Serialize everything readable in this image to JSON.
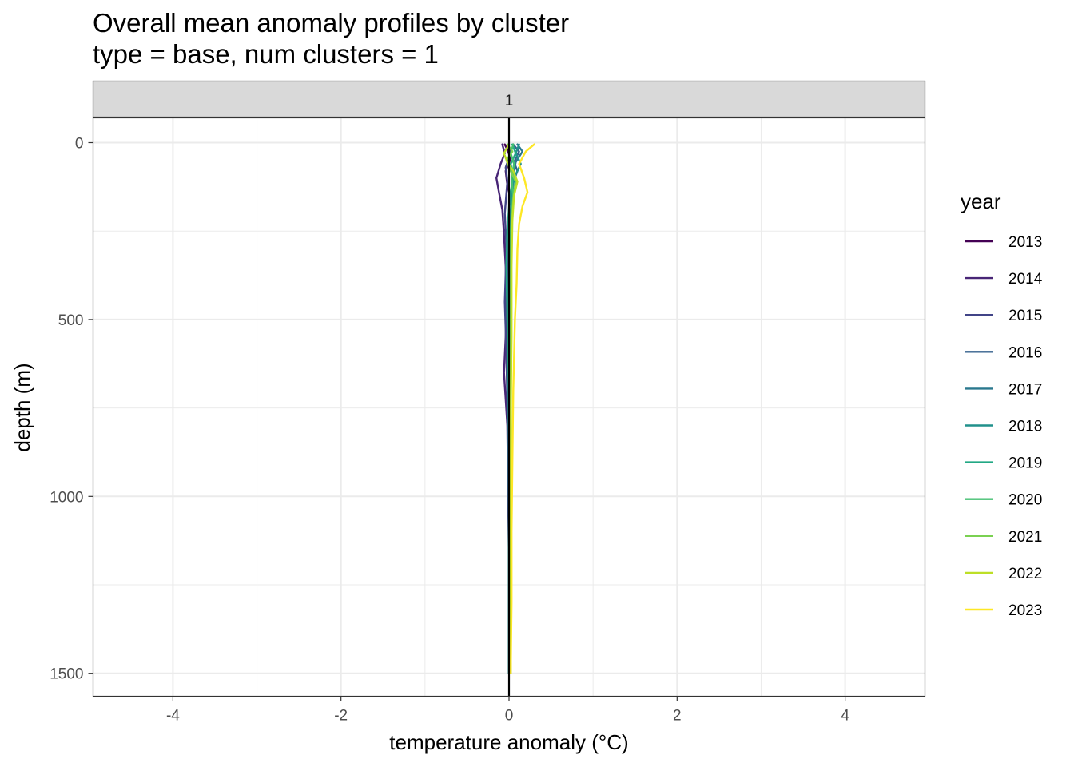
{
  "chart_data": {
    "type": "line",
    "title": "Overall mean anomaly profiles by cluster",
    "subtitle": "type = base, num clusters = 1",
    "xlabel": "temperature anomaly (°C)",
    "ylabel": "depth (m)",
    "xlim": [
      -4.95,
      4.95
    ],
    "ylim": [
      -70,
      1565
    ],
    "y_reversed": true,
    "x_ticks": [
      -4,
      -2,
      0,
      2,
      4
    ],
    "x_tick_labels": [
      "-4",
      "-2",
      "0",
      "2",
      "4"
    ],
    "y_ticks": [
      0,
      500,
      1000,
      1500
    ],
    "y_tick_labels": [
      "0",
      "500",
      "1000",
      "1500"
    ],
    "grid": true,
    "facet_label": "1",
    "reference_line_x": 0,
    "legend": {
      "title": "year",
      "placement": "right"
    },
    "series": [
      {
        "name": "2013",
        "color": "#440154",
        "points": [
          [
            -0.05,
            5
          ],
          [
            -0.02,
            20
          ],
          [
            0.02,
            45
          ],
          [
            -0.04,
            80
          ],
          [
            -0.02,
            120
          ],
          [
            0.03,
            170
          ],
          [
            0.0,
            250
          ],
          [
            0.01,
            400
          ],
          [
            0.0,
            600
          ],
          [
            0.0,
            900
          ],
          [
            0.0,
            1200
          ],
          [
            0.0,
            1500
          ]
        ]
      },
      {
        "name": "2014",
        "color": "#482576",
        "points": [
          [
            -0.08,
            5
          ],
          [
            -0.05,
            30
          ],
          [
            -0.1,
            60
          ],
          [
            -0.15,
            100
          ],
          [
            -0.12,
            140
          ],
          [
            -0.08,
            190
          ],
          [
            -0.06,
            260
          ],
          [
            -0.04,
            350
          ],
          [
            -0.03,
            450
          ],
          [
            -0.04,
            550
          ],
          [
            -0.06,
            650
          ],
          [
            -0.02,
            800
          ],
          [
            -0.01,
            1000
          ],
          [
            0.0,
            1200
          ],
          [
            0.0,
            1500
          ]
        ]
      },
      {
        "name": "2015",
        "color": "#414487",
        "points": [
          [
            -0.02,
            5
          ],
          [
            0.02,
            30
          ],
          [
            -0.04,
            70
          ],
          [
            -0.02,
            110
          ],
          [
            -0.05,
            200
          ],
          [
            -0.03,
            300
          ],
          [
            -0.05,
            450
          ],
          [
            -0.03,
            600
          ],
          [
            -0.02,
            750
          ],
          [
            -0.01,
            900
          ],
          [
            0.0,
            1100
          ],
          [
            0.0,
            1300
          ],
          [
            0.0,
            1500
          ]
        ]
      },
      {
        "name": "2016",
        "color": "#35608d",
        "points": [
          [
            0.05,
            5
          ],
          [
            0.12,
            25
          ],
          [
            0.06,
            55
          ],
          [
            0.1,
            80
          ],
          [
            0.04,
            120
          ],
          [
            0.02,
            200
          ],
          [
            -0.01,
            300
          ],
          [
            -0.02,
            450
          ],
          [
            -0.01,
            650
          ],
          [
            0.0,
            900
          ],
          [
            0.0,
            1200
          ],
          [
            0.0,
            1500
          ]
        ]
      },
      {
        "name": "2017",
        "color": "#2a788e",
        "points": [
          [
            0.1,
            5
          ],
          [
            0.16,
            25
          ],
          [
            0.08,
            55
          ],
          [
            0.05,
            90
          ],
          [
            0.03,
            150
          ],
          [
            0.01,
            250
          ],
          [
            0.0,
            400
          ],
          [
            -0.01,
            600
          ],
          [
            0.0,
            900
          ],
          [
            0.0,
            1200
          ],
          [
            0.0,
            1500
          ]
        ]
      },
      {
        "name": "2018",
        "color": "#21918c",
        "points": [
          [
            0.12,
            5
          ],
          [
            0.08,
            30
          ],
          [
            0.14,
            60
          ],
          [
            0.06,
            100
          ],
          [
            0.03,
            160
          ],
          [
            0.01,
            250
          ],
          [
            0.0,
            400
          ],
          [
            0.0,
            600
          ],
          [
            0.0,
            900
          ],
          [
            0.0,
            1200
          ],
          [
            0.0,
            1500
          ]
        ]
      },
      {
        "name": "2019",
        "color": "#22a884",
        "points": [
          [
            0.04,
            5
          ],
          [
            0.08,
            30
          ],
          [
            0.02,
            60
          ],
          [
            0.05,
            100
          ],
          [
            0.01,
            150
          ],
          [
            -0.02,
            250
          ],
          [
            -0.03,
            350
          ],
          [
            -0.02,
            500
          ],
          [
            0.0,
            700
          ],
          [
            0.0,
            1000
          ],
          [
            0.0,
            1300
          ],
          [
            0.0,
            1500
          ]
        ]
      },
      {
        "name": "2020",
        "color": "#43bf71",
        "points": [
          [
            0.05,
            5
          ],
          [
            0.02,
            30
          ],
          [
            0.06,
            60
          ],
          [
            0.03,
            100
          ],
          [
            0.05,
            150
          ],
          [
            0.02,
            250
          ],
          [
            0.01,
            400
          ],
          [
            0.01,
            600
          ],
          [
            0.01,
            900
          ],
          [
            0.01,
            1200
          ],
          [
            0.01,
            1500
          ]
        ]
      },
      {
        "name": "2021",
        "color": "#7ad151",
        "points": [
          [
            -0.02,
            5
          ],
          [
            0.04,
            25
          ],
          [
            -0.03,
            50
          ],
          [
            0.02,
            80
          ],
          [
            0.08,
            110
          ],
          [
            0.05,
            160
          ],
          [
            0.03,
            250
          ],
          [
            0.02,
            400
          ],
          [
            0.02,
            600
          ],
          [
            0.02,
            900
          ],
          [
            0.02,
            1200
          ],
          [
            0.02,
            1500
          ]
        ]
      },
      {
        "name": "2022",
        "color": "#bddf26",
        "points": [
          [
            0.0,
            5
          ],
          [
            -0.06,
            30
          ],
          [
            -0.02,
            55
          ],
          [
            0.05,
            80
          ],
          [
            0.1,
            110
          ],
          [
            0.06,
            150
          ],
          [
            0.04,
            220
          ],
          [
            0.03,
            350
          ],
          [
            0.03,
            550
          ],
          [
            0.02,
            800
          ],
          [
            0.02,
            1100
          ],
          [
            0.02,
            1500
          ]
        ]
      },
      {
        "name": "2023",
        "color": "#fde725",
        "points": [
          [
            0.3,
            5
          ],
          [
            0.2,
            25
          ],
          [
            0.12,
            60
          ],
          [
            0.18,
            100
          ],
          [
            0.22,
            140
          ],
          [
            0.16,
            180
          ],
          [
            0.12,
            230
          ],
          [
            0.1,
            300
          ],
          [
            0.09,
            400
          ],
          [
            0.07,
            500
          ],
          [
            0.05,
            700
          ],
          [
            0.04,
            900
          ],
          [
            0.03,
            1100
          ],
          [
            0.03,
            1300
          ],
          [
            0.02,
            1500
          ]
        ]
      }
    ]
  }
}
